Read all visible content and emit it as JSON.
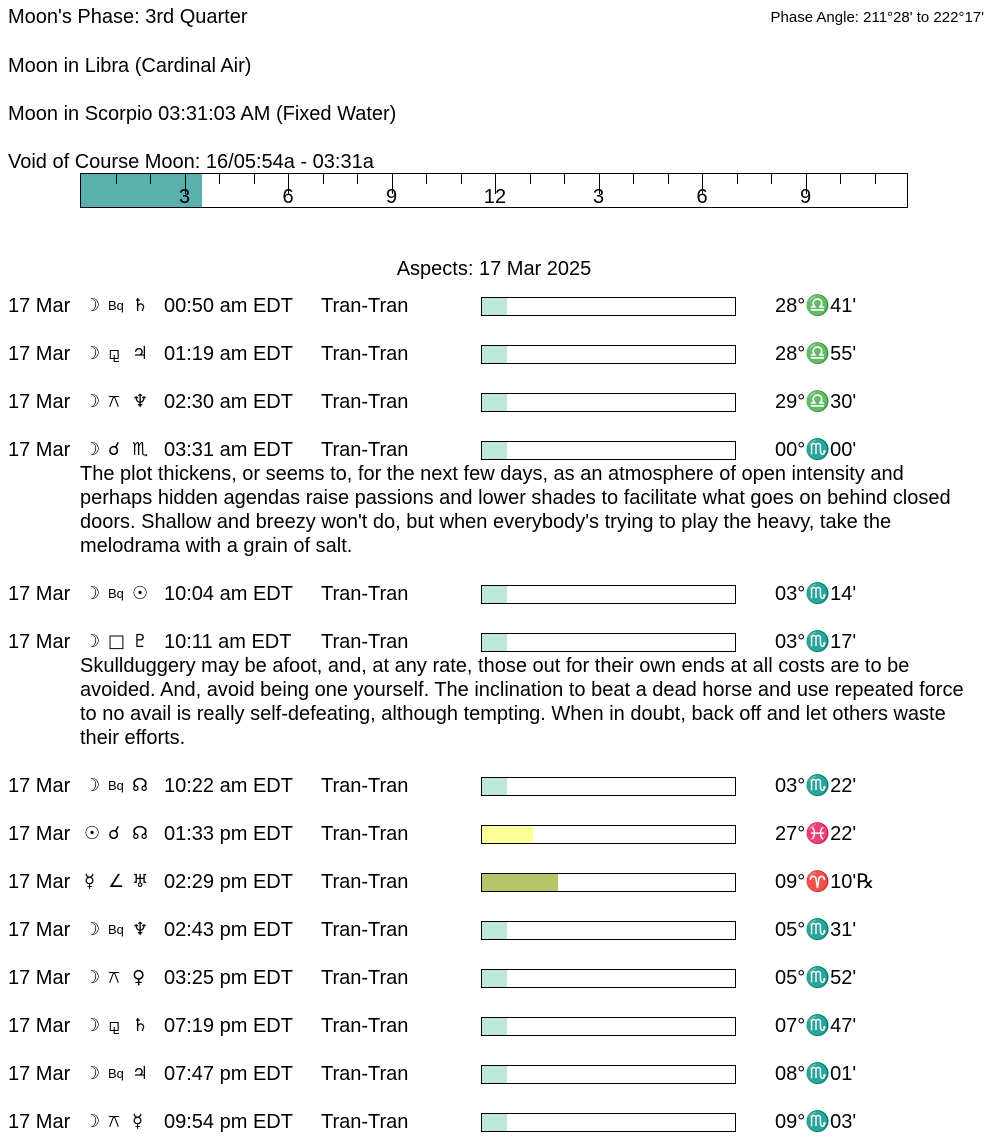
{
  "header": {
    "phase": "Moon's Phase:  3rd Quarter",
    "phase_angle": "Phase Angle:  211°28' to 222°17'",
    "moon_sign": "Moon in Libra   (Cardinal Air)",
    "moon_ingress": "Moon in Scorpio 03:31:03 AM  (Fixed Water)",
    "void": "Void of Course Moon: 16/05:54a -  03:31a"
  },
  "timeline": {
    "labels": [
      "3",
      "6",
      "9",
      "12",
      "3",
      "6",
      "9"
    ],
    "void_end_hours": 3.52,
    "fill_color": "#5aafaf"
  },
  "aspects_title": "Aspects: 17 Mar 2025",
  "aspects": [
    {
      "date": "17 Mar",
      "p1": "☽",
      "asp": "Bq",
      "p2": "♄",
      "time": "00:50 am EDT",
      "type": "Tran-Tran",
      "strength": 0.1,
      "color": "#bde6dc",
      "pos": "28°♎41'"
    },
    {
      "date": "17 Mar",
      "p1": "☽",
      "asp": "⚼",
      "p2": "♃",
      "time": "01:19 am EDT",
      "type": "Tran-Tran",
      "strength": 0.1,
      "color": "#bde6dc",
      "pos": "28°♎55'"
    },
    {
      "date": "17 Mar",
      "p1": "☽",
      "asp": "⚻",
      "p2": "♆",
      "time": "02:30 am EDT",
      "type": "Tran-Tran",
      "strength": 0.1,
      "color": "#bde6dc",
      "pos": "29°♎30'"
    },
    {
      "date": "17 Mar",
      "p1": "☽",
      "asp": "☌",
      "p2": "♏",
      "time": "03:31 am EDT",
      "type": "Tran-Tran",
      "strength": 0.1,
      "color": "#bde6dc",
      "pos": "00°♏00'",
      "text": "The plot thickens, or seems to, for the next few days, as an atmosphere of open intensity and perhaps hidden agendas raise passions and lower shades to facilitate what goes on behind closed doors. Shallow and breezy won't do, but when everybody's trying to play the heavy, take the melodrama with a grain of salt."
    },
    {
      "date": "17 Mar",
      "p1": "☽",
      "asp": "Bq",
      "p2": "☉",
      "time": "10:04 am EDT",
      "type": "Tran-Tran",
      "strength": 0.1,
      "color": "#bde6dc",
      "pos": "03°♏14'"
    },
    {
      "date": "17 Mar",
      "p1": "☽",
      "asp": "□",
      "p2": "♇",
      "time": "10:11 am EDT",
      "type": "Tran-Tran",
      "strength": 0.1,
      "color": "#bde6dc",
      "pos": "03°♏17'",
      "text": "Skullduggery may be afoot, and, at any rate, those out for their own ends at all costs are to be avoided. And, avoid being one yourself. The inclination to beat a dead horse and use repeated force to no avail is really self-defeating, although tempting. When in doubt, back off and let others waste their efforts."
    },
    {
      "date": "17 Mar",
      "p1": "☽",
      "asp": "Bq",
      "p2": "☊",
      "time": "10:22 am EDT",
      "type": "Tran-Tran",
      "strength": 0.1,
      "color": "#bde6dc",
      "pos": "03°♏22'"
    },
    {
      "date": "17 Mar",
      "p1": "☉",
      "asp": "☌",
      "p2": "☊",
      "time": "01:33 pm EDT",
      "type": "Tran-Tran",
      "strength": 0.2,
      "color": "#ffff99",
      "pos": "27°♓22'"
    },
    {
      "date": "17 Mar",
      "p1": "☿",
      "asp": "∠",
      "p2": "♅",
      "time": "02:29 pm EDT",
      "type": "Tran-Tran",
      "strength": 0.3,
      "color": "#b3c566",
      "pos": "09°♈10'℞"
    },
    {
      "date": "17 Mar",
      "p1": "☽",
      "asp": "Bq",
      "p2": "♆",
      "time": "02:43 pm EDT",
      "type": "Tran-Tran",
      "strength": 0.1,
      "color": "#bde6dc",
      "pos": "05°♏31'"
    },
    {
      "date": "17 Mar",
      "p1": "☽",
      "asp": "⚻",
      "p2": "♀",
      "time": "03:25 pm EDT",
      "type": "Tran-Tran",
      "strength": 0.1,
      "color": "#bde6dc",
      "pos": "05°♏52'"
    },
    {
      "date": "17 Mar",
      "p1": "☽",
      "asp": "⚼",
      "p2": "♄",
      "time": "07:19 pm EDT",
      "type": "Tran-Tran",
      "strength": 0.1,
      "color": "#bde6dc",
      "pos": "07°♏47'"
    },
    {
      "date": "17 Mar",
      "p1": "☽",
      "asp": "Bq",
      "p2": "♃",
      "time": "07:47 pm EDT",
      "type": "Tran-Tran",
      "strength": 0.1,
      "color": "#bde6dc",
      "pos": "08°♏01'"
    },
    {
      "date": "17 Mar",
      "p1": "☽",
      "asp": "⚻",
      "p2": "☿",
      "time": "09:54 pm EDT",
      "type": "Tran-Tran",
      "strength": 0.1,
      "color": "#bde6dc",
      "pos": "09°♏03'"
    }
  ]
}
